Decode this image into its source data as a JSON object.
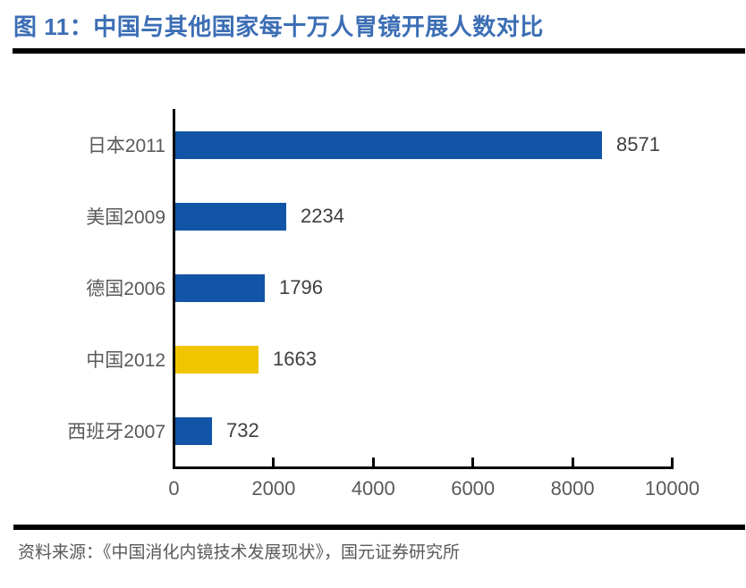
{
  "header": {
    "title": "图 11：中国与其他国家每十万人胃镜开展人数对比"
  },
  "chart_data": {
    "type": "bar",
    "orientation": "horizontal",
    "title": "中国与其他国家每十万人胃镜开展人数对比",
    "categories": [
      "日本2011",
      "美国2009",
      "德国2006",
      "中国2012",
      "西班牙2007"
    ],
    "values": [
      8571,
      2234,
      1796,
      1663,
      732
    ],
    "value_labels": [
      "8571",
      "2234",
      "1796",
      "1663",
      "732"
    ],
    "bar_colors": [
      "#1254A6",
      "#1254A6",
      "#1254A6",
      "#F0C500",
      "#1254A6"
    ],
    "highlight_category": "中国2012",
    "xlim": [
      0,
      10000
    ],
    "x_ticks": [
      0,
      2000,
      4000,
      6000,
      8000,
      10000
    ],
    "xlabel": "",
    "ylabel": "",
    "grid": false,
    "legend": null,
    "value_labels_shown": true
  },
  "footer": {
    "source": "资料来源：《中国消化内镜技术发展现状》，国元证券研究所"
  },
  "theme": {
    "title_color": "#3C6EB5",
    "rule_color": "#000000",
    "axis_color": "#000000",
    "default_bar_color": "#1254A6",
    "highlight_bar_color": "#F0C500",
    "category_text_color": "#595959",
    "value_text_color": "#3F3F3F",
    "tick_text_color": "#595959",
    "source_text_color": "#595959",
    "background_color": "#FFFFFF"
  }
}
